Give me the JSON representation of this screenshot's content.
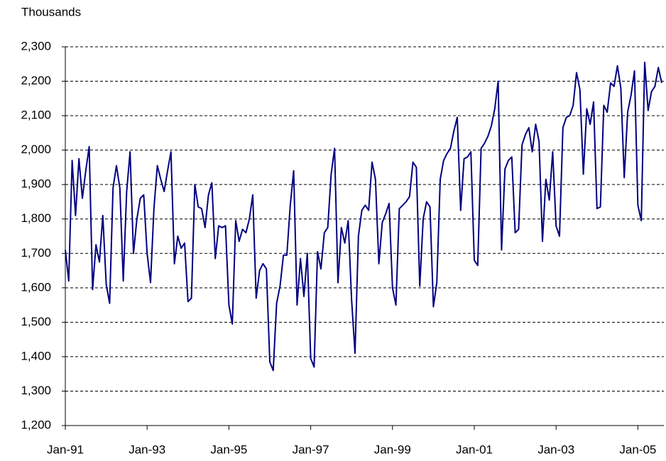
{
  "chart_data": {
    "type": "line",
    "y_axis_label": "Thousands",
    "categories": [
      "Jan-91",
      null,
      null,
      null,
      null,
      null,
      null,
      null,
      null,
      null,
      null,
      null,
      null,
      null,
      null,
      null,
      null,
      null,
      null,
      null,
      null,
      null,
      null,
      null,
      "Jan-93",
      null,
      null,
      null,
      null,
      null,
      null,
      null,
      null,
      null,
      null,
      null,
      null,
      null,
      null,
      null,
      null,
      null,
      null,
      null,
      null,
      null,
      null,
      null,
      "Jan-95",
      null,
      null,
      null,
      null,
      null,
      null,
      null,
      null,
      null,
      null,
      null,
      null,
      null,
      null,
      null,
      null,
      null,
      null,
      null,
      null,
      null,
      null,
      null,
      "Jan-97",
      null,
      null,
      null,
      null,
      null,
      null,
      null,
      null,
      null,
      null,
      null,
      null,
      null,
      null,
      null,
      null,
      null,
      null,
      null,
      null,
      null,
      null,
      null,
      "Jan-99",
      null,
      null,
      null,
      null,
      null,
      null,
      null,
      null,
      null,
      null,
      null,
      null,
      null,
      null,
      null,
      null,
      null,
      null,
      null,
      null,
      null,
      null,
      null,
      "Jan-01",
      null,
      null,
      null,
      null,
      null,
      null,
      null,
      null,
      null,
      null,
      null,
      null,
      null,
      null,
      null,
      null,
      null,
      null,
      null,
      null,
      null,
      null,
      null,
      "Jan-03",
      null,
      null,
      null,
      null,
      null,
      null,
      null,
      null,
      null,
      null,
      null,
      null,
      null,
      null,
      null,
      null,
      null,
      null,
      null,
      null,
      null,
      null,
      null,
      "Jan-05",
      null,
      null,
      null,
      null,
      null,
      null,
      null
    ],
    "series": [
      {
        "color": "#000080",
        "values": [
          1710,
          1620,
          1970,
          1810,
          1975,
          1860,
          1940,
          2010,
          1595,
          1725,
          1675,
          1810,
          1610,
          1555,
          1890,
          1955,
          1890,
          1620,
          1880,
          1995,
          1700,
          1800,
          1860,
          1870,
          1700,
          1615,
          1830,
          1955,
          1915,
          1880,
          1940,
          1995,
          1670,
          1750,
          1715,
          1730,
          1560,
          1570,
          1900,
          1835,
          1830,
          1775,
          1870,
          1905,
          1685,
          1780,
          1775,
          1780,
          1550,
          1495,
          1795,
          1735,
          1770,
          1760,
          1800,
          1870,
          1570,
          1650,
          1670,
          1655,
          1385,
          1360,
          1555,
          1605,
          1695,
          1695,
          1840,
          1940,
          1550,
          1685,
          1575,
          1700,
          1395,
          1370,
          1705,
          1655,
          1760,
          1775,
          1930,
          2005,
          1615,
          1775,
          1730,
          1795,
          1565,
          1410,
          1750,
          1825,
          1840,
          1825,
          1965,
          1915,
          1670,
          1790,
          1815,
          1845,
          1600,
          1550,
          1830,
          1840,
          1850,
          1865,
          1965,
          1950,
          1605,
          1800,
          1850,
          1835,
          1545,
          1615,
          1915,
          1970,
          1990,
          2005,
          2055,
          2095,
          1825,
          1975,
          1980,
          1995,
          1680,
          1665,
          2005,
          2020,
          2040,
          2070,
          2120,
          2200,
          1710,
          1945,
          1970,
          1980,
          1760,
          1770,
          2015,
          2045,
          2065,
          1995,
          2075,
          2025,
          1735,
          1915,
          1855,
          1995,
          1780,
          1750,
          2065,
          2095,
          2100,
          2130,
          2225,
          2175,
          1930,
          2120,
          2075,
          2140,
          1830,
          1835,
          2130,
          2110,
          2195,
          2185,
          2245,
          2180,
          1920,
          2110,
          2160,
          2230,
          1840,
          1795,
          2255,
          2115,
          2170,
          2185,
          2240,
          2195
        ]
      }
    ],
    "ylim": [
      1200,
      2300
    ],
    "yticks": [
      {
        "value": 1200,
        "label": "1,200"
      },
      {
        "value": 1300,
        "label": "1,300"
      },
      {
        "value": 1400,
        "label": "1,400"
      },
      {
        "value": 1500,
        "label": "1,500"
      },
      {
        "value": 1600,
        "label": "1,600"
      },
      {
        "value": 1700,
        "label": "1,700"
      },
      {
        "value": 1800,
        "label": "1,800"
      },
      {
        "value": 1900,
        "label": "1,900"
      },
      {
        "value": 2000,
        "label": "2,000"
      },
      {
        "value": 2100,
        "label": "2,100"
      },
      {
        "value": 2200,
        "label": "2,200"
      },
      {
        "value": 2300,
        "label": "2,300"
      }
    ],
    "grid": true
  }
}
